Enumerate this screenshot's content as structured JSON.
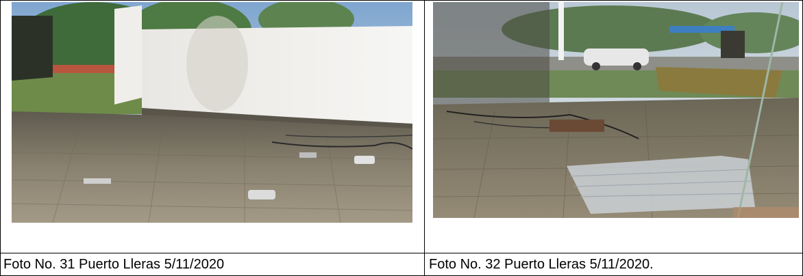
{
  "photos": [
    {
      "caption": "Foto No. 31 Puerto Lleras 5/11/2020",
      "scene": "photo-interior-damaged-wall"
    },
    {
      "caption": "Foto No. 32 Puerto Lleras 5/11/2020.",
      "scene": "photo-through-glass-debris"
    }
  ],
  "colors": {
    "border": "#000000",
    "background": "#ffffff"
  }
}
